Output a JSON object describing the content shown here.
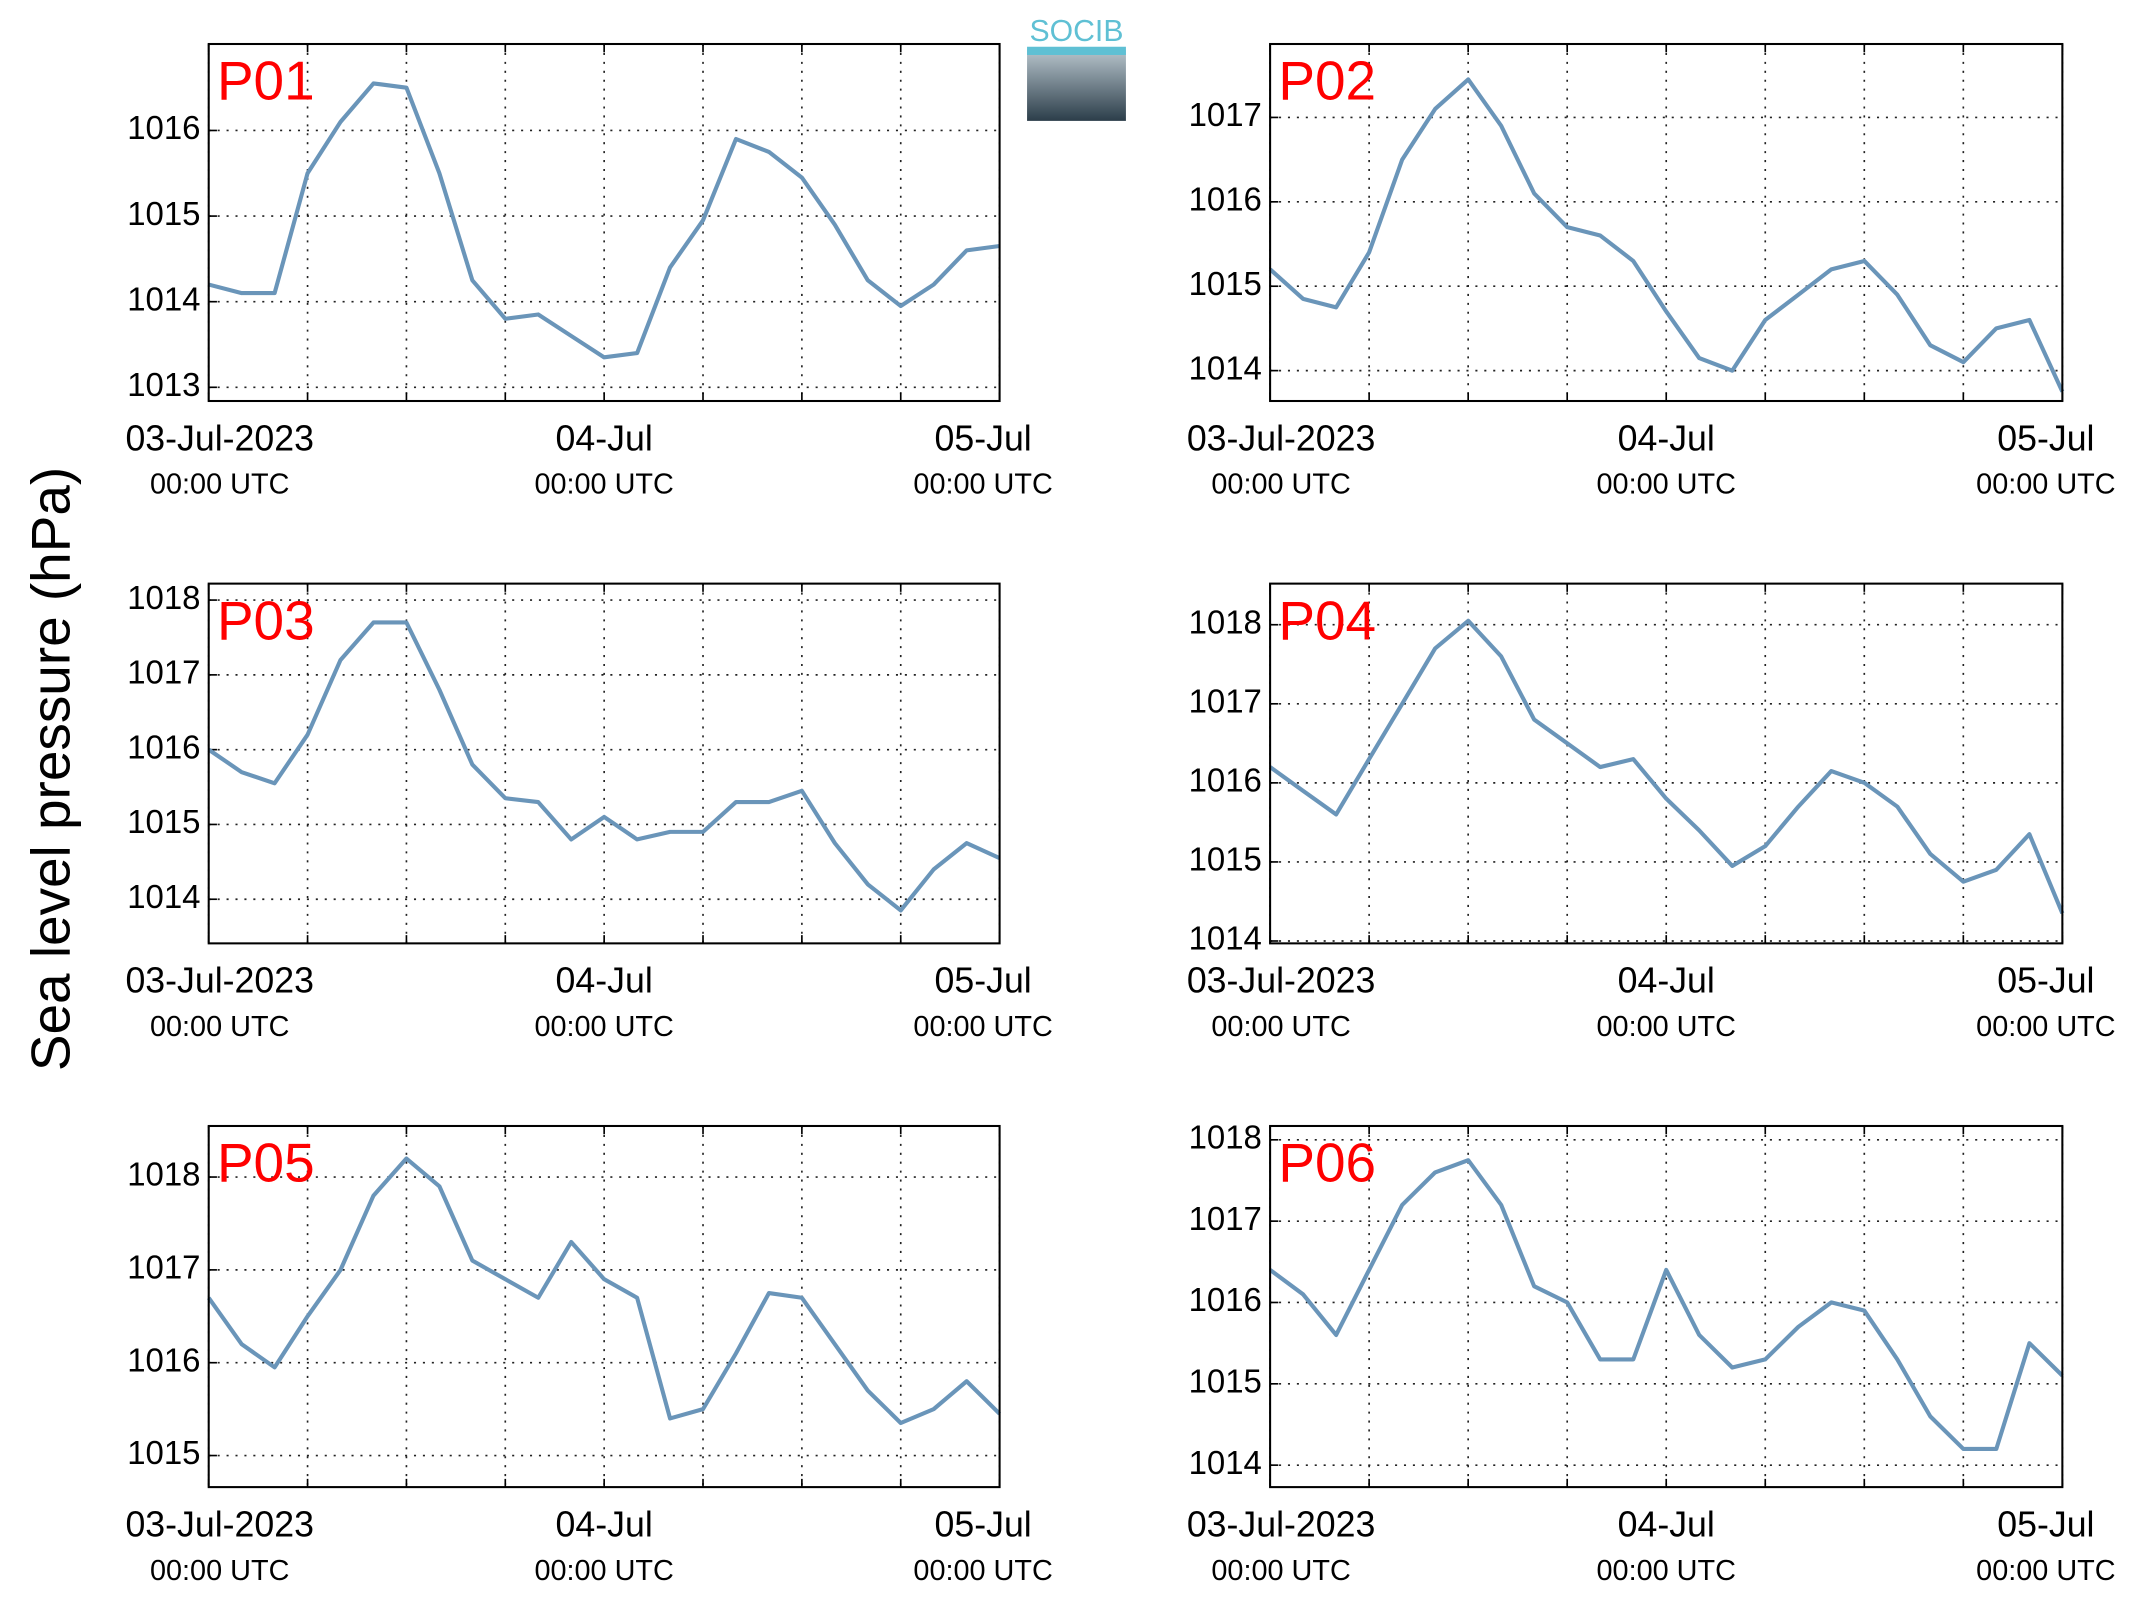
{
  "ylabel": "Sea level pressure (hPa)",
  "logo": "SOCIB",
  "chart_data": [
    {
      "type": "line",
      "title": "P01",
      "color": "#6a95b9",
      "x": [
        "2023-07-03T00:00",
        "2023-07-03T02:00",
        "2023-07-03T04:00",
        "2023-07-03T06:00",
        "2023-07-03T08:00",
        "2023-07-03T10:00",
        "2023-07-03T12:00",
        "2023-07-03T14:00",
        "2023-07-03T16:00",
        "2023-07-03T18:00",
        "2023-07-03T20:00",
        "2023-07-03T22:00",
        "2023-07-04T00:00",
        "2023-07-04T02:00",
        "2023-07-04T04:00",
        "2023-07-04T06:00",
        "2023-07-04T08:00",
        "2023-07-04T10:00",
        "2023-07-04T12:00",
        "2023-07-04T14:00",
        "2023-07-04T16:00",
        "2023-07-04T18:00",
        "2023-07-04T20:00",
        "2023-07-04T22:00",
        "2023-07-05T00:00"
      ],
      "values": [
        1014.2,
        1014.1,
        1014.1,
        1015.5,
        1016.1,
        1016.55,
        1016.5,
        1015.5,
        1014.25,
        1013.8,
        1013.85,
        1013.6,
        1013.35,
        1013.4,
        1014.4,
        1014.95,
        1015.9,
        1015.75,
        1015.45,
        1014.9,
        1014.25,
        1013.95,
        1014.2,
        1014.6,
        1014.65
      ],
      "xlim": [
        "2023-07-03T00:00",
        "2023-07-05T00:00"
      ],
      "xticks": [
        {
          "value": "2023-07-03T00:00",
          "label": [
            "03-Jul-2023",
            "00:00 UTC"
          ]
        },
        {
          "value": "2023-07-03T06:00"
        },
        {
          "value": "2023-07-03T12:00"
        },
        {
          "value": "2023-07-03T18:00"
        },
        {
          "value": "2023-07-04T00:00",
          "label": [
            "04-Jul",
            "00:00 UTC"
          ]
        },
        {
          "value": "2023-07-04T06:00"
        },
        {
          "value": "2023-07-04T12:00"
        },
        {
          "value": "2023-07-04T18:00"
        },
        {
          "value": "2023-07-05T00:00",
          "label": [
            "05-Jul",
            "00:00 UTC"
          ]
        }
      ],
      "ylim": [
        1012.84,
        1017.01
      ],
      "yticks": [
        1013,
        1014,
        1015,
        1016
      ],
      "grid": true
    },
    {
      "type": "line",
      "title": "P02",
      "color": "#6a95b9",
      "x": [
        "2023-07-03T00:00",
        "2023-07-03T02:00",
        "2023-07-03T04:00",
        "2023-07-03T06:00",
        "2023-07-03T08:00",
        "2023-07-03T10:00",
        "2023-07-03T12:00",
        "2023-07-03T14:00",
        "2023-07-03T16:00",
        "2023-07-03T18:00",
        "2023-07-03T20:00",
        "2023-07-03T22:00",
        "2023-07-04T00:00",
        "2023-07-04T02:00",
        "2023-07-04T04:00",
        "2023-07-04T06:00",
        "2023-07-04T08:00",
        "2023-07-04T10:00",
        "2023-07-04T12:00",
        "2023-07-04T14:00",
        "2023-07-04T16:00",
        "2023-07-04T18:00",
        "2023-07-04T20:00",
        "2023-07-04T22:00",
        "2023-07-05T00:00"
      ],
      "values": [
        1015.2,
        1014.85,
        1014.75,
        1015.4,
        1016.5,
        1017.1,
        1017.45,
        1016.9,
        1016.1,
        1015.7,
        1015.6,
        1015.3,
        1014.7,
        1014.15,
        1014.0,
        1014.6,
        1014.9,
        1015.2,
        1015.3,
        1014.9,
        1014.3,
        1014.1,
        1014.5,
        1014.6,
        1013.75
      ],
      "xlim": [
        "2023-07-03T00:00",
        "2023-07-05T00:00"
      ],
      "xticks": [
        {
          "value": "2023-07-03T00:00",
          "label": [
            "03-Jul-2023",
            "00:00 UTC"
          ]
        },
        {
          "value": "2023-07-03T06:00"
        },
        {
          "value": "2023-07-03T12:00"
        },
        {
          "value": "2023-07-03T18:00"
        },
        {
          "value": "2023-07-04T00:00",
          "label": [
            "04-Jul",
            "00:00 UTC"
          ]
        },
        {
          "value": "2023-07-04T06:00"
        },
        {
          "value": "2023-07-04T12:00"
        },
        {
          "value": "2023-07-04T18:00"
        },
        {
          "value": "2023-07-05T00:00",
          "label": [
            "05-Jul",
            "00:00 UTC"
          ]
        }
      ],
      "ylim": [
        1013.64,
        1017.87
      ],
      "yticks": [
        1014,
        1015,
        1016,
        1017
      ],
      "grid": true
    },
    {
      "type": "line",
      "title": "P03",
      "color": "#6a95b9",
      "x": [
        "2023-07-03T00:00",
        "2023-07-03T02:00",
        "2023-07-03T04:00",
        "2023-07-03T06:00",
        "2023-07-03T08:00",
        "2023-07-03T10:00",
        "2023-07-03T12:00",
        "2023-07-03T14:00",
        "2023-07-03T16:00",
        "2023-07-03T18:00",
        "2023-07-03T20:00",
        "2023-07-03T22:00",
        "2023-07-04T00:00",
        "2023-07-04T02:00",
        "2023-07-04T04:00",
        "2023-07-04T06:00",
        "2023-07-04T08:00",
        "2023-07-04T10:00",
        "2023-07-04T12:00",
        "2023-07-04T14:00",
        "2023-07-04T16:00",
        "2023-07-04T18:00",
        "2023-07-04T20:00",
        "2023-07-04T22:00",
        "2023-07-05T00:00"
      ],
      "values": [
        1016.0,
        1015.7,
        1015.55,
        1016.2,
        1017.2,
        1017.7,
        1017.7,
        1016.8,
        1015.8,
        1015.35,
        1015.3,
        1014.8,
        1015.1,
        1014.8,
        1014.9,
        1014.9,
        1015.3,
        1015.3,
        1015.45,
        1014.75,
        1014.2,
        1013.85,
        1014.4,
        1014.75,
        1014.55
      ],
      "xlim": [
        "2023-07-03T00:00",
        "2023-07-05T00:00"
      ],
      "xticks": [
        {
          "value": "2023-07-03T00:00",
          "label": [
            "03-Jul-2023",
            "00:00 UTC"
          ]
        },
        {
          "value": "2023-07-03T06:00"
        },
        {
          "value": "2023-07-03T12:00"
        },
        {
          "value": "2023-07-03T18:00"
        },
        {
          "value": "2023-07-04T00:00",
          "label": [
            "04-Jul",
            "00:00 UTC"
          ]
        },
        {
          "value": "2023-07-04T06:00"
        },
        {
          "value": "2023-07-04T12:00"
        },
        {
          "value": "2023-07-04T18:00"
        },
        {
          "value": "2023-07-05T00:00",
          "label": [
            "05-Jul",
            "00:00 UTC"
          ]
        }
      ],
      "ylim": [
        1013.41,
        1018.22
      ],
      "yticks": [
        1014,
        1015,
        1016,
        1017,
        1018
      ],
      "grid": true
    },
    {
      "type": "line",
      "title": "P04",
      "color": "#6a95b9",
      "x": [
        "2023-07-03T00:00",
        "2023-07-03T02:00",
        "2023-07-03T04:00",
        "2023-07-03T06:00",
        "2023-07-03T08:00",
        "2023-07-03T10:00",
        "2023-07-03T12:00",
        "2023-07-03T14:00",
        "2023-07-03T16:00",
        "2023-07-03T18:00",
        "2023-07-03T20:00",
        "2023-07-03T22:00",
        "2023-07-04T00:00",
        "2023-07-04T02:00",
        "2023-07-04T04:00",
        "2023-07-04T06:00",
        "2023-07-04T08:00",
        "2023-07-04T10:00",
        "2023-07-04T12:00",
        "2023-07-04T14:00",
        "2023-07-04T16:00",
        "2023-07-04T18:00",
        "2023-07-04T20:00",
        "2023-07-04T22:00",
        "2023-07-05T00:00"
      ],
      "values": [
        1016.2,
        1015.9,
        1015.6,
        1016.3,
        1017.0,
        1017.7,
        1018.05,
        1017.6,
        1016.8,
        1016.5,
        1016.2,
        1016.3,
        1015.8,
        1015.4,
        1014.95,
        1015.2,
        1015.7,
        1016.15,
        1016.0,
        1015.7,
        1015.1,
        1014.75,
        1014.9,
        1015.35,
        1014.35
      ],
      "xlim": [
        "2023-07-03T00:00",
        "2023-07-05T00:00"
      ],
      "xticks": [
        {
          "value": "2023-07-03T00:00",
          "label": [
            "03-Jul-2023",
            "00:00 UTC"
          ]
        },
        {
          "value": "2023-07-03T06:00"
        },
        {
          "value": "2023-07-03T12:00"
        },
        {
          "value": "2023-07-03T18:00"
        },
        {
          "value": "2023-07-04T00:00",
          "label": [
            "04-Jul",
            "00:00 UTC"
          ]
        },
        {
          "value": "2023-07-04T06:00"
        },
        {
          "value": "2023-07-04T12:00"
        },
        {
          "value": "2023-07-04T18:00"
        },
        {
          "value": "2023-07-05T00:00",
          "label": [
            "05-Jul",
            "00:00 UTC"
          ]
        }
      ],
      "ylim": [
        1013.97,
        1018.52
      ],
      "yticks": [
        1014,
        1015,
        1016,
        1017,
        1018
      ],
      "grid": true
    },
    {
      "type": "line",
      "title": "P05",
      "color": "#6a95b9",
      "x": [
        "2023-07-03T00:00",
        "2023-07-03T02:00",
        "2023-07-03T04:00",
        "2023-07-03T06:00",
        "2023-07-03T08:00",
        "2023-07-03T10:00",
        "2023-07-03T12:00",
        "2023-07-03T14:00",
        "2023-07-03T16:00",
        "2023-07-03T18:00",
        "2023-07-03T20:00",
        "2023-07-03T22:00",
        "2023-07-04T00:00",
        "2023-07-04T02:00",
        "2023-07-04T04:00",
        "2023-07-04T06:00",
        "2023-07-04T08:00",
        "2023-07-04T10:00",
        "2023-07-04T12:00",
        "2023-07-04T14:00",
        "2023-07-04T16:00",
        "2023-07-04T18:00",
        "2023-07-04T20:00",
        "2023-07-04T22:00",
        "2023-07-05T00:00"
      ],
      "values": [
        1016.7,
        1016.2,
        1015.95,
        1016.5,
        1017.0,
        1017.8,
        1018.2,
        1017.9,
        1017.1,
        1016.9,
        1016.7,
        1017.3,
        1016.9,
        1016.7,
        1015.4,
        1015.5,
        1016.1,
        1016.75,
        1016.7,
        1016.2,
        1015.7,
        1015.35,
        1015.5,
        1015.8,
        1015.45
      ],
      "xlim": [
        "2023-07-03T00:00",
        "2023-07-05T00:00"
      ],
      "xticks": [
        {
          "value": "2023-07-03T00:00",
          "label": [
            "03-Jul-2023",
            "00:00 UTC"
          ]
        },
        {
          "value": "2023-07-03T06:00"
        },
        {
          "value": "2023-07-03T12:00"
        },
        {
          "value": "2023-07-03T18:00"
        },
        {
          "value": "2023-07-04T00:00",
          "label": [
            "04-Jul",
            "00:00 UTC"
          ]
        },
        {
          "value": "2023-07-04T06:00"
        },
        {
          "value": "2023-07-04T12:00"
        },
        {
          "value": "2023-07-04T18:00"
        },
        {
          "value": "2023-07-05T00:00",
          "label": [
            "05-Jul",
            "00:00 UTC"
          ]
        }
      ],
      "ylim": [
        1014.66,
        1018.55
      ],
      "yticks": [
        1015,
        1016,
        1017,
        1018
      ],
      "grid": true
    },
    {
      "type": "line",
      "title": "P06",
      "color": "#6a95b9",
      "x": [
        "2023-07-03T00:00",
        "2023-07-03T02:00",
        "2023-07-03T04:00",
        "2023-07-03T06:00",
        "2023-07-03T08:00",
        "2023-07-03T10:00",
        "2023-07-03T12:00",
        "2023-07-03T14:00",
        "2023-07-03T16:00",
        "2023-07-03T18:00",
        "2023-07-03T20:00",
        "2023-07-03T22:00",
        "2023-07-04T00:00",
        "2023-07-04T02:00",
        "2023-07-04T04:00",
        "2023-07-04T06:00",
        "2023-07-04T08:00",
        "2023-07-04T10:00",
        "2023-07-04T12:00",
        "2023-07-04T14:00",
        "2023-07-04T16:00",
        "2023-07-04T18:00",
        "2023-07-04T20:00",
        "2023-07-04T22:00",
        "2023-07-05T00:00"
      ],
      "values": [
        1016.4,
        1016.1,
        1015.6,
        1016.4,
        1017.2,
        1017.6,
        1017.75,
        1017.2,
        1016.2,
        1016.0,
        1015.3,
        1015.3,
        1016.4,
        1015.6,
        1015.2,
        1015.3,
        1015.7,
        1016.0,
        1015.9,
        1015.3,
        1014.6,
        1014.2,
        1014.2,
        1015.5,
        1015.1
      ],
      "xlim": [
        "2023-07-03T00:00",
        "2023-07-05T00:00"
      ],
      "xticks": [
        {
          "value": "2023-07-03T00:00",
          "label": [
            "03-Jul-2023",
            "00:00 UTC"
          ]
        },
        {
          "value": "2023-07-03T06:00"
        },
        {
          "value": "2023-07-03T12:00"
        },
        {
          "value": "2023-07-03T18:00"
        },
        {
          "value": "2023-07-04T00:00",
          "label": [
            "04-Jul",
            "00:00 UTC"
          ]
        },
        {
          "value": "2023-07-04T06:00"
        },
        {
          "value": "2023-07-04T12:00"
        },
        {
          "value": "2023-07-04T18:00"
        },
        {
          "value": "2023-07-05T00:00",
          "label": [
            "05-Jul",
            "00:00 UTC"
          ]
        }
      ],
      "ylim": [
        1013.73,
        1018.17
      ],
      "yticks": [
        1014,
        1015,
        1016,
        1017,
        1018
      ],
      "grid": true
    }
  ]
}
